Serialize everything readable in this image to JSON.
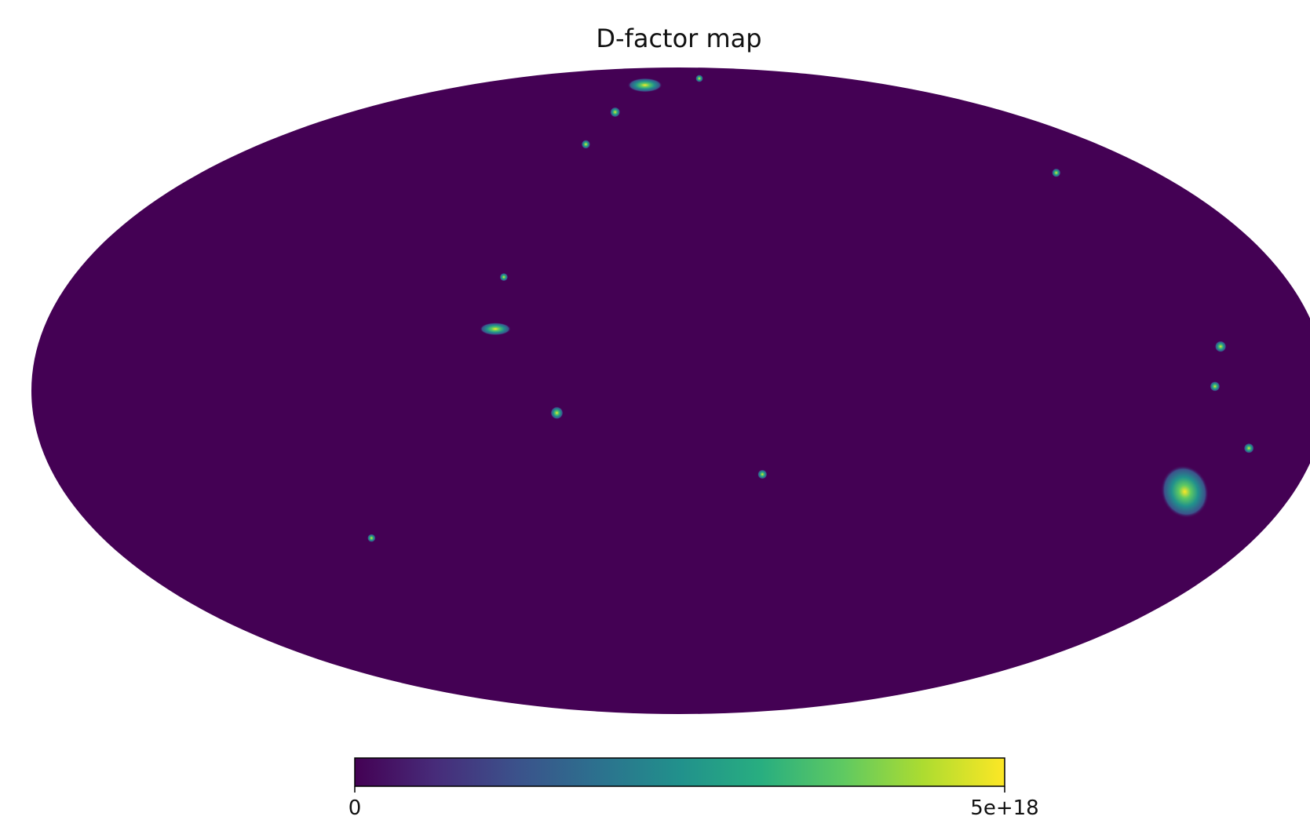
{
  "chart_data": {
    "type": "heatmap",
    "projection": "Mollweide all-sky",
    "title": "D-factor map",
    "colormap": "viridis",
    "colorbar": {
      "orientation": "horizontal",
      "min": 0,
      "max": 5e+18,
      "tick_labels": [
        "0",
        "5e+18"
      ]
    },
    "background_value": 0,
    "sources": [
      {
        "lon": -148,
        "lat": -23,
        "value": 5e+18,
        "extent": "large"
      },
      {
        "lon": 29,
        "lat": 80,
        "value": 5e+18,
        "extent": "medium"
      },
      {
        "lon": 52,
        "lat": 14,
        "value": 4e+18,
        "extent": "medium"
      },
      {
        "lon": 34,
        "lat": -5,
        "value": 5e+18,
        "extent": "small"
      },
      {
        "lon": -24,
        "lat": -19,
        "value": 2.5e+18,
        "extent": "small"
      },
      {
        "lon": -152,
        "lat": 10,
        "value": 4e+18,
        "extent": "small"
      },
      {
        "lon": -149,
        "lat": 1,
        "value": 3e+18,
        "extent": "small"
      },
      {
        "lon": -161,
        "lat": -13,
        "value": 3e+18,
        "extent": "small"
      },
      {
        "lon": -142,
        "lat": 52,
        "value": 2e+18,
        "extent": "small"
      },
      {
        "lon": 52,
        "lat": 26,
        "value": 1.5e+18,
        "extent": "small"
      },
      {
        "lon": 40,
        "lat": 60,
        "value": 2e+18,
        "extent": "small"
      },
      {
        "lon": 35,
        "lat": 70,
        "value": 3e+18,
        "extent": "small"
      },
      {
        "lon": 96,
        "lat": -34,
        "value": 1.5e+18,
        "extent": "small"
      },
      {
        "lon": -22,
        "lat": 83,
        "value": 1e+18,
        "extent": "small"
      }
    ]
  }
}
